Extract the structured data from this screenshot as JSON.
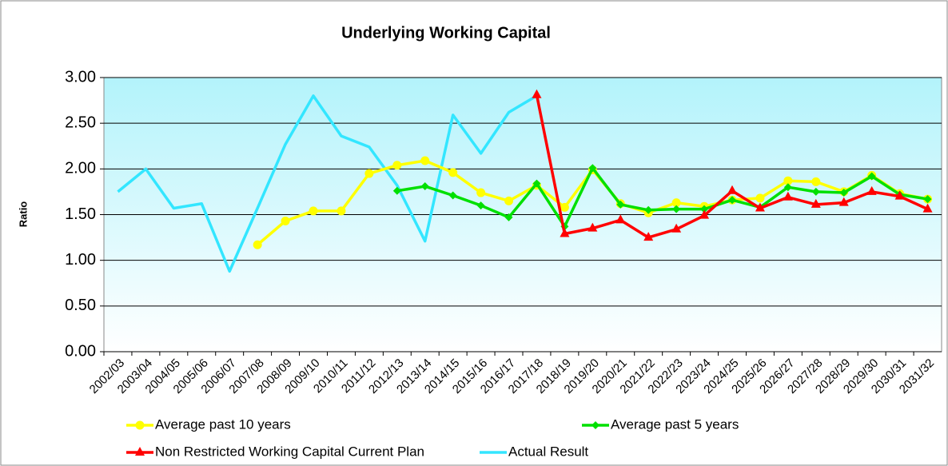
{
  "chart_data": {
    "type": "line",
    "title": "Underlying Working Capital",
    "y_label": "Ratio",
    "categories": [
      "2002/03",
      "2003/04",
      "2004/05",
      "2005/06",
      "2006/07",
      "2007/08",
      "2008/09",
      "2009/10",
      "2010/11",
      "2011/12",
      "2012/13",
      "2013/14",
      "2014/15",
      "2015/16",
      "2016/17",
      "2017/18",
      "2018/19",
      "2019/20",
      "2020/21",
      "2021/22",
      "2022/23",
      "2023/24",
      "2024/25",
      "2025/26",
      "2026/27",
      "2027/28",
      "2028/29",
      "2029/30",
      "2030/31",
      "2031/32"
    ],
    "series": [
      {
        "name": "Average past 10 years",
        "color": "#ffff00",
        "marker": "circle",
        "values": [
          null,
          null,
          null,
          null,
          null,
          1.17,
          1.43,
          1.54,
          1.54,
          1.95,
          2.04,
          2.09,
          1.96,
          1.74,
          1.65,
          1.82,
          1.58,
          1.99,
          1.62,
          1.52,
          1.63,
          1.59,
          1.66,
          1.68,
          1.87,
          1.86,
          1.75,
          1.93,
          1.73,
          1.67
        ]
      },
      {
        "name": "Average past 5 years",
        "color": "#00e000",
        "marker": "diamond",
        "values": [
          null,
          null,
          null,
          null,
          null,
          null,
          null,
          null,
          null,
          null,
          1.76,
          1.81,
          1.71,
          1.6,
          1.47,
          1.84,
          1.37,
          2.01,
          1.61,
          1.55,
          1.56,
          1.56,
          1.66,
          1.58,
          1.8,
          1.75,
          1.74,
          1.92,
          1.72,
          1.67
        ]
      },
      {
        "name": "Non Restricted Working Capital Current Plan",
        "color": "#ff0000",
        "marker": "triangle",
        "values": [
          null,
          null,
          null,
          null,
          null,
          null,
          null,
          null,
          null,
          null,
          null,
          null,
          null,
          null,
          null,
          2.81,
          1.29,
          1.35,
          1.44,
          1.25,
          1.34,
          1.49,
          1.76,
          1.57,
          1.69,
          1.61,
          1.63,
          1.75,
          1.7,
          1.56
        ]
      },
      {
        "name": "Actual Result",
        "color": "#33e6ff",
        "marker": "none",
        "values": [
          1.75,
          2.0,
          1.57,
          1.62,
          0.88,
          1.57,
          2.27,
          2.8,
          2.36,
          2.24,
          1.82,
          1.21,
          2.59,
          2.17,
          2.62,
          2.8,
          null,
          null,
          null,
          null,
          null,
          null,
          null,
          null,
          null,
          null,
          null,
          null,
          null,
          null
        ]
      }
    ],
    "ylim": [
      0,
      3
    ],
    "yticks": [
      {
        "value": 0,
        "label": "0.00"
      },
      {
        "value": 0.5,
        "label": "0.50"
      },
      {
        "value": 1,
        "label": "1.00"
      },
      {
        "value": 1.5,
        "label": "1.50"
      },
      {
        "value": 2,
        "label": "2.00"
      },
      {
        "value": 2.5,
        "label": "2.50"
      },
      {
        "value": 3,
        "label": "3.00"
      }
    ],
    "grid": true,
    "legend": "bottom"
  }
}
